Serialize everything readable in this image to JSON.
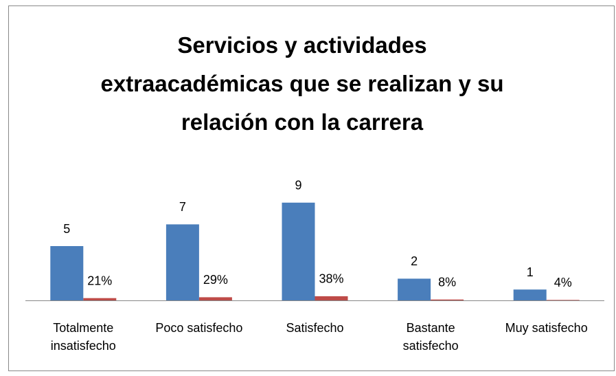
{
  "chart_data": {
    "type": "bar",
    "title": "Servicios y actividades\nextraacadémicas que se realizan y su\nrelación con la carrera",
    "categories": [
      "Totalmente\ninsatisfecho",
      "Poco satisfecho",
      "Satisfecho",
      "Bastante\nsatisfecho",
      "Muy satisfecho"
    ],
    "series": [
      {
        "color": "#4a7ebb",
        "values": [
          5,
          7,
          9,
          2,
          1
        ]
      },
      {
        "color": "#be4b48",
        "values": [
          0.21,
          0.29,
          0.38,
          0.08,
          0.04
        ],
        "value_labels": [
          "21%",
          "29%",
          "38%",
          "8%",
          "4%"
        ]
      }
    ],
    "ylim": [
      0,
      10
    ]
  }
}
